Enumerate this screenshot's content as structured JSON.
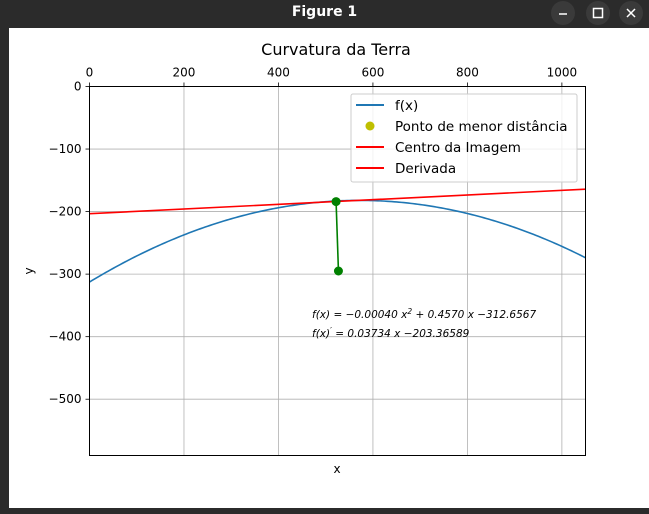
{
  "window": {
    "title": "Figure 1",
    "buttons": [
      {
        "name": "minimize-icon"
      },
      {
        "name": "maximize-icon"
      },
      {
        "name": "close-icon"
      }
    ]
  },
  "chart_data": {
    "type": "line",
    "title": "Curvatura da Terra",
    "xlabel": "x",
    "ylabel": "y",
    "xlim": [
      0,
      1050
    ],
    "ylim": [
      -590,
      0
    ],
    "x_axis_position": "top",
    "grid": true,
    "x_ticks": [
      0,
      200,
      400,
      600,
      800,
      1000
    ],
    "y_ticks": [
      0,
      -100,
      -200,
      -300,
      -400,
      -500
    ],
    "x_tick_labels": [
      "0",
      "200",
      "400",
      "600",
      "800",
      "1000"
    ],
    "y_tick_labels": [
      "0",
      "−100",
      "−200",
      "−300",
      "−400",
      "−500"
    ],
    "curve": {
      "a": -0.0004,
      "b": 0.457,
      "c": -312.6567
    },
    "tangent": {
      "m": 0.03734,
      "c": -203.36589
    },
    "series": [
      {
        "name": "f(x)",
        "color": "#1f77b4",
        "kind": "line",
        "x_range": [
          0,
          1050
        ]
      },
      {
        "name": "Ponto de menor distância",
        "color": "#bfbf00",
        "kind": "marker"
      },
      {
        "name": "Centro da Imagem",
        "color": "#ff0000",
        "kind": "line"
      },
      {
        "name": "Derivada",
        "color": "#ff0000",
        "kind": "line",
        "x_range": [
          0,
          1050
        ]
      }
    ],
    "segment": {
      "color": "#008000",
      "points": [
        {
          "x": 522,
          "y": -184
        },
        {
          "x": 527,
          "y": -295
        }
      ]
    },
    "legend_position": "top-right",
    "legend": [
      {
        "label": "f(x)",
        "color": "#1f77b4",
        "kind": "line"
      },
      {
        "label": "Ponto de menor distância",
        "color": "#bfbf00",
        "kind": "marker"
      },
      {
        "label": "Centro da Imagem",
        "color": "#ff0000",
        "kind": "line"
      },
      {
        "label": "Derivada",
        "color": "#ff0000",
        "kind": "line"
      }
    ],
    "annotations": {
      "line1_prefix": "f(x) = −0.00040 x",
      "line1_sup": "2",
      "line1_suffix": " + 0.4570 x  −312.6567",
      "line2_prefix": "f(x)",
      "line2_sup": "′",
      "line2_suffix": " = 0.03734 x −203.36589"
    }
  }
}
